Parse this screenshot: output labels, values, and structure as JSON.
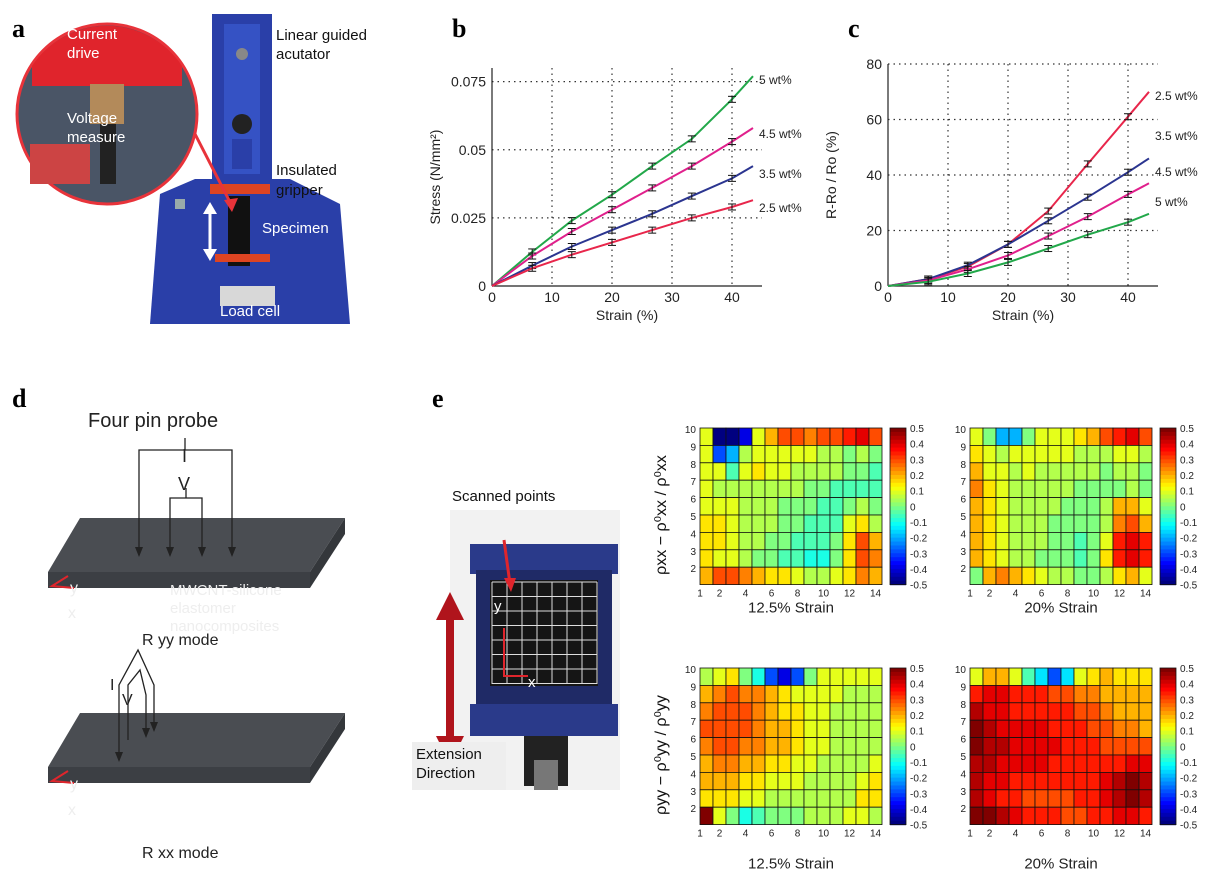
{
  "panels": {
    "a": "a",
    "b": "b",
    "c": "c",
    "d": "d",
    "e": "e"
  },
  "panel_a": {
    "inset_current": "Current",
    "inset_drive": "drive",
    "inset_voltage": "Voltage",
    "inset_measure": "measure",
    "actuator_line1": "Linear guided",
    "actuator_line2": "acutator",
    "gripper_line1": "Insulated",
    "gripper_line2": "gripper",
    "specimen": "Specimen",
    "load_cell": "Load cell"
  },
  "panel_d": {
    "title": "Four pin probe",
    "I": "I",
    "V": "V",
    "material1": "MWCNT-silicone",
    "material2": "elastomer",
    "material3": "nanocomposites",
    "y": "y",
    "x": "x",
    "mode_yy": "R yy mode",
    "mode_xx": "R xx mode"
  },
  "panel_e": {
    "scanned": "Scanned points",
    "ext1": "Extension",
    "ext2": "Direction",
    "y": "y",
    "x": "x",
    "heat_xlabels": [
      "12.5% Strain",
      "20% Strain",
      "12.5% Strain",
      "20% Strain"
    ],
    "colorbar_ticks": [
      "0.5",
      "0.4",
      "0.3",
      "0.2",
      "0.1",
      "0",
      "-0.1",
      "-0.2",
      "-0.3",
      "-0.4",
      "-0.5"
    ],
    "row_ticks": [
      "10",
      "9",
      "8",
      "7",
      "6",
      "5",
      "4",
      "3",
      "2"
    ],
    "col_ticks": [
      "1",
      "2",
      "4",
      "6",
      "8",
      "10",
      "12",
      "14"
    ]
  },
  "chart_data": [
    {
      "type": "line",
      "xlabel": "Strain (%)",
      "ylabel": "Stress (N/mm²)",
      "xlim": [
        0,
        45
      ],
      "ylim": [
        0,
        0.08
      ],
      "xticks": [
        "0",
        "10",
        "20",
        "30",
        "40"
      ],
      "yticks": [
        "0",
        "0.025",
        "0.05",
        "0.075"
      ],
      "grid": true,
      "series": [
        {
          "name": "5 wt%",
          "color": "#22a84a",
          "x": [
            0,
            6.7,
            13.3,
            20,
            26.7,
            33.3,
            40,
            43.5
          ],
          "y": [
            0,
            0.0125,
            0.024,
            0.0335,
            0.044,
            0.054,
            0.0685,
            0.077
          ]
        },
        {
          "name": "4.5 wt%",
          "color": "#e0208c",
          "x": [
            0,
            6.7,
            13.3,
            20,
            26.7,
            33.3,
            40,
            43.5
          ],
          "y": [
            0,
            0.011,
            0.02,
            0.028,
            0.036,
            0.044,
            0.053,
            0.058
          ]
        },
        {
          "name": "3.5 wt%",
          "color": "#2b3590",
          "x": [
            0,
            6.7,
            13.3,
            20,
            26.7,
            33.3,
            40,
            43.5
          ],
          "y": [
            0,
            0.0075,
            0.0145,
            0.0205,
            0.0265,
            0.033,
            0.0395,
            0.044
          ]
        },
        {
          "name": "2.5 wt%",
          "color": "#e8264b",
          "x": [
            0,
            6.7,
            13.3,
            20,
            26.7,
            33.3,
            40,
            43.5
          ],
          "y": [
            0,
            0.0065,
            0.0115,
            0.016,
            0.0205,
            0.025,
            0.029,
            0.0315
          ]
        }
      ]
    },
    {
      "type": "line",
      "xlabel": "Strain (%)",
      "ylabel": "R-Ro / Ro (%)",
      "xlim": [
        0,
        45
      ],
      "ylim": [
        0,
        80
      ],
      "xticks": [
        "0",
        "10",
        "20",
        "30",
        "40"
      ],
      "yticks": [
        "0",
        "20",
        "40",
        "60",
        "80"
      ],
      "grid": true,
      "series": [
        {
          "name": "2.5 wt%",
          "color": "#e8264b",
          "x": [
            0,
            6.7,
            13.3,
            20,
            26.7,
            33.3,
            40,
            43.5
          ],
          "y": [
            0,
            2.5,
            7,
            15,
            27,
            44,
            61,
            70
          ]
        },
        {
          "name": "3.5 wt%",
          "color": "#2b3590",
          "x": [
            0,
            6.7,
            13.3,
            20,
            26.7,
            33.3,
            40,
            43.5
          ],
          "y": [
            0,
            2.5,
            7.5,
            15,
            23.5,
            32,
            41,
            46
          ]
        },
        {
          "name": "4.5 wt%",
          "color": "#e0208c",
          "x": [
            0,
            6.7,
            13.3,
            20,
            26.7,
            33.3,
            40,
            43.5
          ],
          "y": [
            0,
            2,
            6,
            11,
            18,
            25,
            33,
            37
          ]
        },
        {
          "name": "5 wt%",
          "color": "#22a84a",
          "x": [
            0,
            6.7,
            13.3,
            20,
            26.7,
            33.3,
            40,
            43.5
          ],
          "y": [
            0,
            1.5,
            4.5,
            8.5,
            13.5,
            18.5,
            23,
            26
          ]
        }
      ]
    }
  ]
}
